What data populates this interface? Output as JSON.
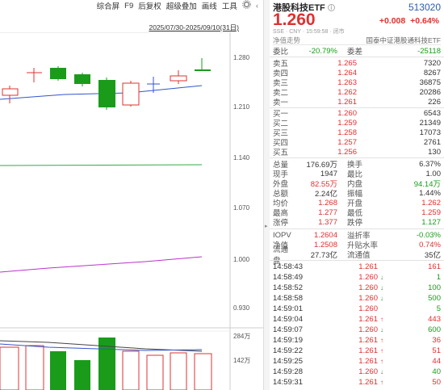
{
  "toolbar": {
    "items": [
      "综合屏",
      "F9",
      "后复权",
      "超级叠加",
      "画线",
      "工具"
    ],
    "settings_icon": "gear-icon",
    "collapse_icon": "chevron-left-icon"
  },
  "chart": {
    "date_range": "2025/07/30-2025/09/10(31日)",
    "price_axis": [
      "1.280",
      "1.210",
      "1.140",
      "1.070",
      "1.000",
      "0.930"
    ],
    "volume_axis": [
      "284万",
      "142万"
    ],
    "colors": {
      "up": "#e03030",
      "down": "#1a9c1a",
      "ma_blue": "#3355cc",
      "ma_green": "#33aa44",
      "ma_purple": "#bb33cc"
    }
  },
  "quote": {
    "name": "港股科技ETF",
    "code": "513020",
    "price": "1.260",
    "change": "+0.008",
    "change_pct": "+0.64%",
    "meta": "SSE · CNY · 15:59:58 · 闭市",
    "sub_left": "净值走势",
    "sub_right": "国泰中证港股通科技ETF",
    "weibi_label": "委比",
    "weibi": "-20.79%",
    "weicha_label": "委差",
    "weicha": "-25118",
    "asks": [
      {
        "label": "卖五",
        "price": "1.265",
        "vol": "7320"
      },
      {
        "label": "卖四",
        "price": "1.264",
        "vol": "8267"
      },
      {
        "label": "卖三",
        "price": "1.263",
        "vol": "36875"
      },
      {
        "label": "卖二",
        "price": "1.262",
        "vol": "20286"
      },
      {
        "label": "卖一",
        "price": "1.261",
        "vol": "226"
      }
    ],
    "bids": [
      {
        "label": "买一",
        "price": "1.260",
        "vol": "6543"
      },
      {
        "label": "买二",
        "price": "1.259",
        "vol": "21349"
      },
      {
        "label": "买三",
        "price": "1.258",
        "vol": "17073"
      },
      {
        "label": "买四",
        "price": "1.257",
        "vol": "2761"
      },
      {
        "label": "买五",
        "price": "1.256",
        "vol": "130"
      }
    ],
    "stats": [
      {
        "l1": "总量",
        "v1": "176.69万",
        "c1": "dark",
        "l2": "换手",
        "v2": "6.37%",
        "c2": "dark"
      },
      {
        "l1": "现手",
        "v1": "1947",
        "c1": "dark",
        "l2": "最比",
        "v2": "1.00",
        "c2": "dark"
      },
      {
        "l1": "外盘",
        "v1": "82.55万",
        "c1": "red",
        "l2": "内盘",
        "v2": "94.14万",
        "c2": "green"
      },
      {
        "l1": "总额",
        "v1": "2.24亿",
        "c1": "dark",
        "l2": "振幅",
        "v2": "1.44%",
        "c2": "dark"
      },
      {
        "l1": "均价",
        "v1": "1.268",
        "c1": "red",
        "l2": "开盘",
        "v2": "1.262",
        "c2": "red"
      },
      {
        "l1": "最高",
        "v1": "1.277",
        "c1": "red",
        "l2": "最低",
        "v2": "1.259",
        "c2": "red"
      },
      {
        "l1": "涨停",
        "v1": "1.377",
        "c1": "red",
        "l2": "跌停",
        "v2": "1.127",
        "c2": "green"
      }
    ],
    "iopv": [
      {
        "l1": "IOPV",
        "v1": "1.2604",
        "c1": "red",
        "l2": "溢折率",
        "v2": "-0.03%",
        "c2": "green"
      },
      {
        "l1": "净值",
        "v1": "1.2508",
        "c1": "red",
        "l2": "升贴水率",
        "v2": "0.74%",
        "c2": "red"
      },
      {
        "l1": "流通盘",
        "v1": "27.73亿",
        "c1": "dark",
        "l2": "流通值",
        "v2": "35亿",
        "c2": "dark"
      }
    ],
    "ticks": [
      {
        "time": "14:58:43",
        "price": "1.261",
        "dir": "",
        "vol": "161",
        "vc": "red"
      },
      {
        "time": "14:58:49",
        "price": "1.260",
        "dir": "↓",
        "vol": "1",
        "vc": "green"
      },
      {
        "time": "14:58:52",
        "price": "1.260",
        "dir": "↓",
        "vol": "100",
        "vc": "green"
      },
      {
        "time": "14:58:58",
        "price": "1.260",
        "dir": "↓",
        "vol": "500",
        "vc": "green"
      },
      {
        "time": "14:59:01",
        "price": "1.260",
        "dir": "",
        "vol": "5",
        "vc": "green"
      },
      {
        "time": "14:59:04",
        "price": "1.261",
        "dir": "↑",
        "vol": "443",
        "vc": "red"
      },
      {
        "time": "14:59:07",
        "price": "1.260",
        "dir": "↓",
        "vol": "600",
        "vc": "green"
      },
      {
        "time": "14:59:19",
        "price": "1.261",
        "dir": "↑",
        "vol": "36",
        "vc": "red"
      },
      {
        "time": "14:59:22",
        "price": "1.261",
        "dir": "↑",
        "vol": "51",
        "vc": "red"
      },
      {
        "time": "14:59:25",
        "price": "1.261",
        "dir": "↑",
        "vol": "44",
        "vc": "red"
      },
      {
        "time": "14:59:28",
        "price": "1.260",
        "dir": "↓",
        "vol": "40",
        "vc": "green"
      },
      {
        "time": "14:59:31",
        "price": "1.261",
        "dir": "↑",
        "vol": "50",
        "vc": "red"
      }
    ]
  }
}
